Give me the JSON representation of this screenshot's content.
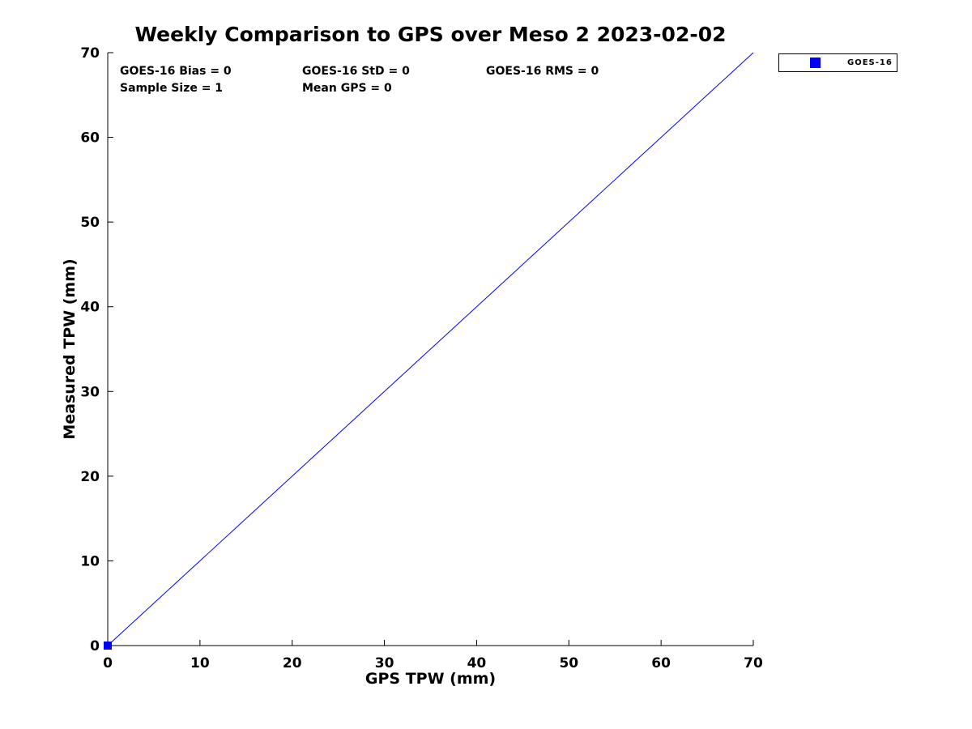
{
  "figure": {
    "background": "#ffffff"
  },
  "chart_data": {
    "type": "scatter",
    "title": "Weekly Comparison to GPS over Meso 2 2023-02-02",
    "xlabel": "GPS TPW (mm)",
    "ylabel": "Measured TPW (mm)",
    "xlim": [
      0,
      70
    ],
    "ylim": [
      0,
      70
    ],
    "xticks": [
      0,
      10,
      20,
      30,
      40,
      50,
      60,
      70
    ],
    "yticks": [
      0,
      10,
      20,
      30,
      40,
      50,
      60,
      70
    ],
    "grid": false,
    "axis_color": "#000000",
    "tick_direction": "in",
    "series": [
      {
        "name": "GOES-16",
        "type": "scatter",
        "marker": "square",
        "color": "#0000ff",
        "points": [
          [
            0,
            0
          ]
        ]
      }
    ],
    "reference_line": {
      "x": [
        0,
        70
      ],
      "y": [
        0,
        70
      ],
      "color": "#0000ff",
      "width": 1
    },
    "annotations": [
      {
        "text": "GOES-16 Bias = 0"
      },
      {
        "text": "GOES-16 StD = 0"
      },
      {
        "text": "GOES-16 RMS = 0"
      },
      {
        "text": "Sample Size = 1"
      },
      {
        "text": "Mean GPS = 0"
      }
    ],
    "legend": {
      "position": "outside-top-right",
      "entries": [
        {
          "label": "GOES-16",
          "color": "#0000ff",
          "marker": "square"
        }
      ]
    }
  }
}
